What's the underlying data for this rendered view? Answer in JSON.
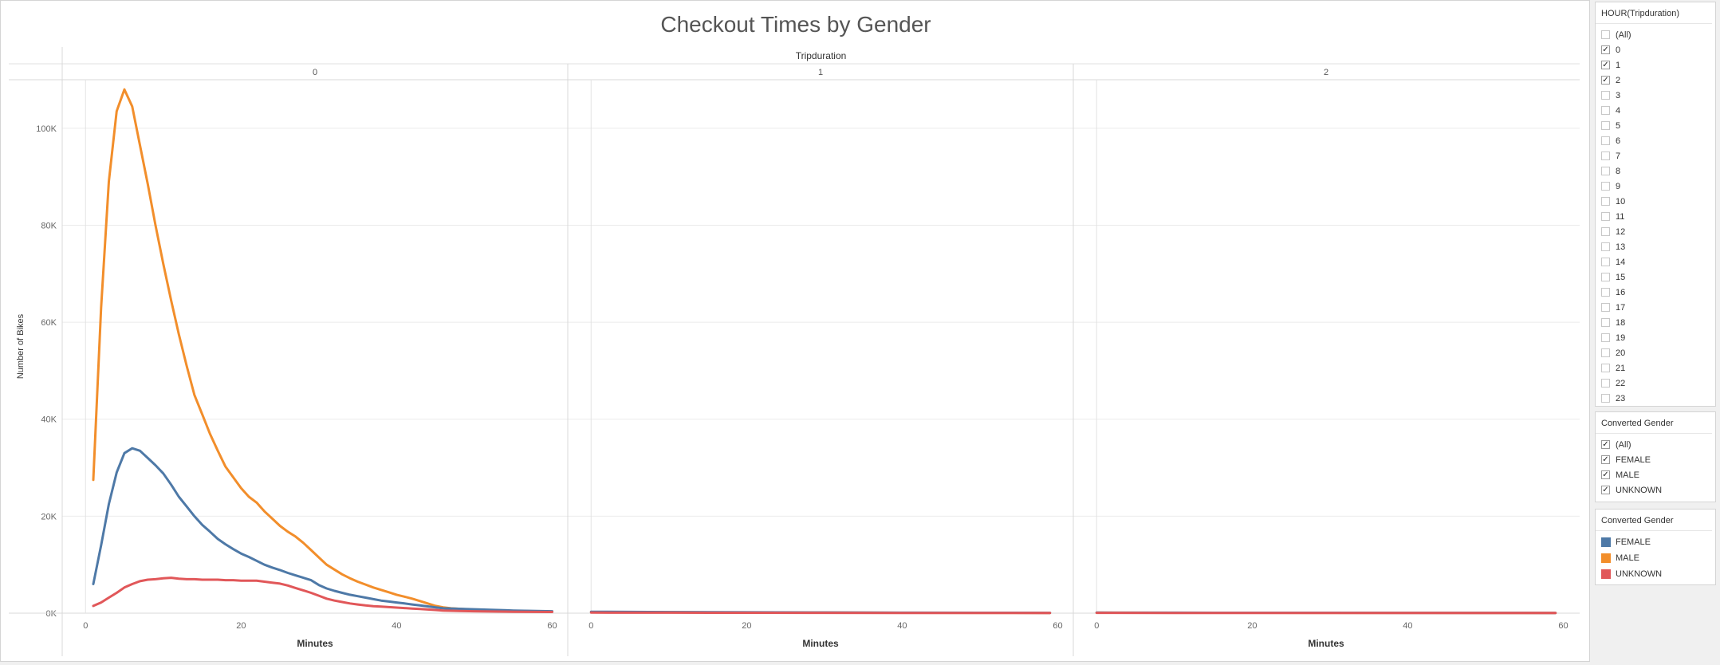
{
  "dashboard": {
    "title": "Checkout Times by Gender"
  },
  "hour_filter": {
    "title": "HOUR(Tripduration)",
    "items": [
      {
        "label": "(All)",
        "checked": false
      },
      {
        "label": "0",
        "checked": true
      },
      {
        "label": "1",
        "checked": true
      },
      {
        "label": "2",
        "checked": true
      },
      {
        "label": "3",
        "checked": false
      },
      {
        "label": "4",
        "checked": false
      },
      {
        "label": "5",
        "checked": false
      },
      {
        "label": "6",
        "checked": false
      },
      {
        "label": "7",
        "checked": false
      },
      {
        "label": "8",
        "checked": false
      },
      {
        "label": "9",
        "checked": false
      },
      {
        "label": "10",
        "checked": false
      },
      {
        "label": "11",
        "checked": false
      },
      {
        "label": "12",
        "checked": false
      },
      {
        "label": "13",
        "checked": false
      },
      {
        "label": "14",
        "checked": false
      },
      {
        "label": "15",
        "checked": false
      },
      {
        "label": "16",
        "checked": false
      },
      {
        "label": "17",
        "checked": false
      },
      {
        "label": "18",
        "checked": false
      },
      {
        "label": "19",
        "checked": false
      },
      {
        "label": "20",
        "checked": false
      },
      {
        "label": "21",
        "checked": false
      },
      {
        "label": "22",
        "checked": false
      },
      {
        "label": "23",
        "checked": false
      }
    ]
  },
  "gender_filter": {
    "title": "Converted Gender",
    "items": [
      {
        "label": "(All)",
        "checked": true
      },
      {
        "label": "FEMALE",
        "checked": true
      },
      {
        "label": "MALE",
        "checked": true
      },
      {
        "label": "UNKNOWN",
        "checked": true
      }
    ]
  },
  "gender_legend": {
    "title": "Converted Gender",
    "items": [
      {
        "label": "FEMALE",
        "color": "#4e79a7"
      },
      {
        "label": "MALE",
        "color": "#f28e2b"
      },
      {
        "label": "UNKNOWN",
        "color": "#e15759"
      }
    ]
  },
  "chart_data": {
    "type": "line",
    "title": "Checkout Times by Gender",
    "facet_label": "Tripduration",
    "xlabel": "Minutes",
    "ylabel": "Number of Bikes",
    "ylim": [
      0,
      110000
    ],
    "xlim": [
      -3,
      62
    ],
    "y_ticks": [
      0,
      20000,
      40000,
      60000,
      80000,
      100000
    ],
    "y_tick_labels": [
      "0K",
      "20K",
      "40K",
      "60K",
      "80K",
      "100K"
    ],
    "x_ticks": [
      0,
      20,
      40,
      60
    ],
    "x_tick_labels": [
      "0",
      "20",
      "40",
      "60"
    ],
    "grid": true,
    "panels": [
      {
        "label": "0",
        "series": [
          {
            "name": "MALE",
            "color": "#f28e2b",
            "points": [
              [
                1,
                27500
              ],
              [
                2,
                63000
              ],
              [
                3,
                89000
              ],
              [
                4,
                103500
              ],
              [
                5,
                108000
              ],
              [
                6,
                104500
              ],
              [
                7,
                96500
              ],
              [
                8,
                88500
              ],
              [
                9,
                80000
              ],
              [
                10,
                72000
              ],
              [
                11,
                64500
              ],
              [
                12,
                57500
              ],
              [
                13,
                51000
              ],
              [
                14,
                45000
              ],
              [
                15,
                41000
              ],
              [
                16,
                37000
              ],
              [
                17,
                33500
              ],
              [
                18,
                30200
              ],
              [
                19,
                28000
              ],
              [
                20,
                25800
              ],
              [
                21,
                24000
              ],
              [
                22,
                22800
              ],
              [
                23,
                21000
              ],
              [
                24,
                19500
              ],
              [
                25,
                18000
              ],
              [
                26,
                16800
              ],
              [
                27,
                15800
              ],
              [
                28,
                14500
              ],
              [
                29,
                13000
              ],
              [
                30,
                11500
              ],
              [
                31,
                10000
              ],
              [
                32,
                9000
              ],
              [
                33,
                8000
              ],
              [
                34,
                7200
              ],
              [
                35,
                6500
              ],
              [
                36,
                5900
              ],
              [
                37,
                5300
              ],
              [
                38,
                4800
              ],
              [
                39,
                4300
              ],
              [
                40,
                3800
              ],
              [
                41,
                3400
              ],
              [
                42,
                3000
              ],
              [
                43,
                2500
              ],
              [
                44,
                2000
              ],
              [
                45,
                1500
              ],
              [
                46,
                1200
              ],
              [
                47,
                1000
              ],
              [
                48,
                900
              ],
              [
                49,
                800
              ],
              [
                50,
                700
              ],
              [
                52,
                600
              ],
              [
                55,
                500
              ],
              [
                58,
                400
              ],
              [
                60,
                350
              ]
            ]
          },
          {
            "name": "FEMALE",
            "color": "#4e79a7",
            "points": [
              [
                1,
                6000
              ],
              [
                2,
                14000
              ],
              [
                3,
                22500
              ],
              [
                4,
                29000
              ],
              [
                5,
                33000
              ],
              [
                6,
                34000
              ],
              [
                7,
                33500
              ],
              [
                8,
                32000
              ],
              [
                9,
                30500
              ],
              [
                10,
                28800
              ],
              [
                11,
                26500
              ],
              [
                12,
                24000
              ],
              [
                13,
                22000
              ],
              [
                14,
                20000
              ],
              [
                15,
                18200
              ],
              [
                16,
                16800
              ],
              [
                17,
                15300
              ],
              [
                18,
                14200
              ],
              [
                19,
                13200
              ],
              [
                20,
                12300
              ],
              [
                21,
                11600
              ],
              [
                22,
                10800
              ],
              [
                23,
                10000
              ],
              [
                24,
                9400
              ],
              [
                25,
                8900
              ],
              [
                26,
                8300
              ],
              [
                27,
                7800
              ],
              [
                28,
                7300
              ],
              [
                29,
                6800
              ],
              [
                30,
                5800
              ],
              [
                31,
                5100
              ],
              [
                32,
                4600
              ],
              [
                33,
                4200
              ],
              [
                34,
                3800
              ],
              [
                35,
                3500
              ],
              [
                36,
                3200
              ],
              [
                37,
                2900
              ],
              [
                38,
                2600
              ],
              [
                39,
                2400
              ],
              [
                40,
                2200
              ],
              [
                41,
                2000
              ],
              [
                42,
                1800
              ],
              [
                43,
                1600
              ],
              [
                44,
                1400
              ],
              [
                45,
                1200
              ],
              [
                46,
                1000
              ],
              [
                48,
                900
              ],
              [
                50,
                800
              ],
              [
                52,
                700
              ],
              [
                55,
                550
              ],
              [
                58,
                450
              ],
              [
                60,
                400
              ]
            ]
          },
          {
            "name": "UNKNOWN",
            "color": "#e15759",
            "points": [
              [
                1,
                1500
              ],
              [
                2,
                2200
              ],
              [
                3,
                3200
              ],
              [
                4,
                4200
              ],
              [
                5,
                5300
              ],
              [
                6,
                6000
              ],
              [
                7,
                6600
              ],
              [
                8,
                6900
              ],
              [
                9,
                7000
              ],
              [
                10,
                7200
              ],
              [
                11,
                7300
              ],
              [
                12,
                7100
              ],
              [
                13,
                7000
              ],
              [
                14,
                7000
              ],
              [
                15,
                6900
              ],
              [
                16,
                6900
              ],
              [
                17,
                6900
              ],
              [
                18,
                6800
              ],
              [
                19,
                6800
              ],
              [
                20,
                6700
              ],
              [
                21,
                6700
              ],
              [
                22,
                6700
              ],
              [
                23,
                6500
              ],
              [
                24,
                6300
              ],
              [
                25,
                6100
              ],
              [
                26,
                5700
              ],
              [
                27,
                5200
              ],
              [
                28,
                4700
              ],
              [
                29,
                4200
              ],
              [
                30,
                3600
              ],
              [
                31,
                3000
              ],
              [
                32,
                2600
              ],
              [
                33,
                2300
              ],
              [
                34,
                2000
              ],
              [
                35,
                1800
              ],
              [
                36,
                1600
              ],
              [
                37,
                1450
              ],
              [
                38,
                1350
              ],
              [
                39,
                1250
              ],
              [
                40,
                1150
              ],
              [
                41,
                1050
              ],
              [
                42,
                950
              ],
              [
                43,
                850
              ],
              [
                44,
                750
              ],
              [
                45,
                650
              ],
              [
                46,
                550
              ],
              [
                48,
                450
              ],
              [
                50,
                400
              ],
              [
                55,
                300
              ],
              [
                60,
                250
              ]
            ]
          }
        ]
      },
      {
        "label": "1",
        "series": [
          {
            "name": "MALE",
            "color": "#f28e2b",
            "points": [
              [
                0,
                250
              ],
              [
                10,
                200
              ],
              [
                20,
                150
              ],
              [
                30,
                120
              ],
              [
                40,
                90
              ],
              [
                50,
                70
              ],
              [
                59,
                50
              ]
            ]
          },
          {
            "name": "FEMALE",
            "color": "#4e79a7",
            "points": [
              [
                0,
                300
              ],
              [
                10,
                230
              ],
              [
                20,
                180
              ],
              [
                30,
                140
              ],
              [
                40,
                100
              ],
              [
                50,
                80
              ],
              [
                59,
                60
              ]
            ]
          },
          {
            "name": "UNKNOWN",
            "color": "#e15759",
            "points": [
              [
                0,
                120
              ],
              [
                10,
                100
              ],
              [
                20,
                80
              ],
              [
                30,
                60
              ],
              [
                40,
                50
              ],
              [
                50,
                40
              ],
              [
                59,
                30
              ]
            ]
          }
        ]
      },
      {
        "label": "2",
        "series": [
          {
            "name": "MALE",
            "color": "#f28e2b",
            "points": [
              [
                0,
                100
              ],
              [
                10,
                90
              ],
              [
                20,
                80
              ],
              [
                30,
                70
              ],
              [
                40,
                60
              ],
              [
                50,
                50
              ],
              [
                59,
                40
              ]
            ]
          },
          {
            "name": "FEMALE",
            "color": "#4e79a7",
            "points": [
              [
                0,
                120
              ],
              [
                10,
                100
              ],
              [
                20,
                90
              ],
              [
                30,
                80
              ],
              [
                40,
                70
              ],
              [
                50,
                60
              ],
              [
                59,
                50
              ]
            ]
          },
          {
            "name": "UNKNOWN",
            "color": "#e15759",
            "points": [
              [
                0,
                60
              ],
              [
                10,
                50
              ],
              [
                20,
                45
              ],
              [
                30,
                40
              ],
              [
                40,
                35
              ],
              [
                50,
                30
              ],
              [
                59,
                25
              ]
            ]
          }
        ]
      }
    ]
  }
}
